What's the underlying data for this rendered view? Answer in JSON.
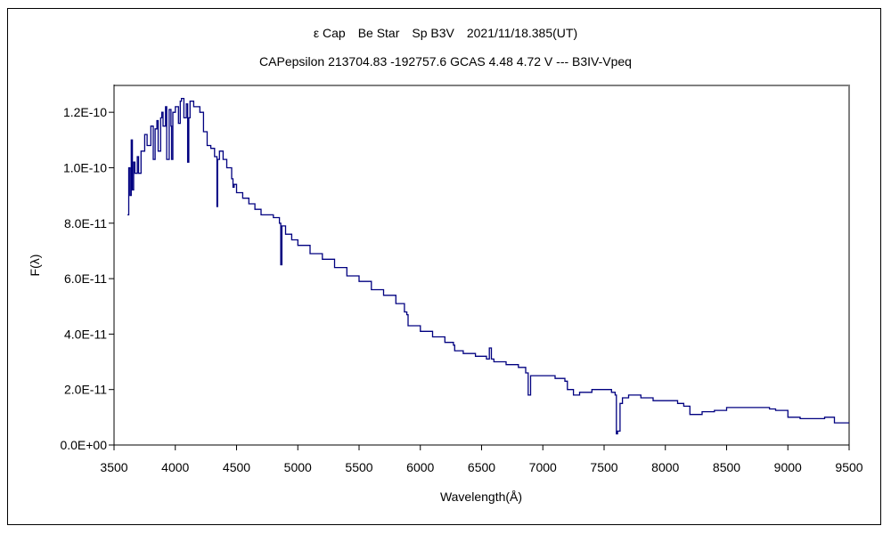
{
  "chart_data": {
    "type": "line",
    "title": "ε Cap　Be Star　Sp B3V　2021/11/18.385(UT)",
    "subtitle": "CAPepsilon 213704.83 -192757.6 GCAS 4.48 4.72 V --- B3IV-Vpeq",
    "xlabel": "Wavelength(Å)",
    "ylabel": "F(λ)",
    "xlim": [
      3500,
      9500
    ],
    "ylim": [
      0,
      1.3e-10
    ],
    "x_ticks": [
      3500,
      4000,
      4500,
      5000,
      5500,
      6000,
      6500,
      7000,
      7500,
      8000,
      8500,
      9000,
      9500
    ],
    "x_tick_labels": [
      "3500",
      "4000",
      "4500",
      "5000",
      "5500",
      "6000",
      "6500",
      "7000",
      "7500",
      "8000",
      "8500",
      "9000",
      "9500"
    ],
    "y_ticks": [
      0,
      2e-11,
      4e-11,
      6e-11,
      8e-11,
      1e-10,
      1.2e-10
    ],
    "y_tick_labels": [
      "0.0E+00",
      "2.0E-11",
      "4.0E-11",
      "6.0E-11",
      "8.0E-11",
      "1.0E-10",
      "1.2E-10"
    ],
    "grid": false,
    "line_color": "#000080",
    "series": [
      {
        "name": "F(λ)",
        "x": [
          3610,
          3620,
          3630,
          3640,
          3650,
          3660,
          3670,
          3690,
          3700,
          3720,
          3750,
          3770,
          3800,
          3820,
          3835,
          3850,
          3860,
          3880,
          3890,
          3900,
          3920,
          3930,
          3950,
          3965,
          3970,
          3980,
          4000,
          4026,
          4040,
          4050,
          4070,
          4090,
          4101,
          4110,
          4120,
          4150,
          4200,
          4230,
          4260,
          4290,
          4320,
          4340,
          4345,
          4360,
          4390,
          4420,
          4460,
          4471,
          4480,
          4500,
          4550,
          4600,
          4650,
          4700,
          4750,
          4800,
          4850,
          4861,
          4870,
          4880,
          4900,
          4950,
          5000,
          5100,
          5200,
          5300,
          5400,
          5500,
          5600,
          5700,
          5800,
          5870,
          5890,
          5900,
          5950,
          6000,
          6100,
          6200,
          6270,
          6280,
          6350,
          6450,
          6540,
          6563,
          6580,
          6600,
          6700,
          6800,
          6860,
          6870,
          6880,
          6900,
          7000,
          7100,
          7180,
          7200,
          7250,
          7300,
          7400,
          7500,
          7560,
          7590,
          7600,
          7610,
          7630,
          7650,
          7700,
          7800,
          7900,
          8000,
          8100,
          8150,
          8200,
          8300,
          8400,
          8500,
          8600,
          8700,
          8800,
          8850,
          8900,
          9000,
          9100,
          9200,
          9300,
          9350,
          9380,
          9400,
          9450,
          9500
        ],
        "y": [
          8.3,
          10.0,
          9.0,
          11.0,
          9.2,
          10.2,
          9.8,
          10.4,
          9.8,
          10.6,
          11.2,
          10.8,
          11.5,
          10.3,
          11.4,
          11.7,
          10.6,
          11.8,
          12.0,
          11.5,
          12.2,
          10.3,
          12.1,
          11.5,
          10.3,
          12.0,
          12.2,
          11.6,
          12.4,
          12.5,
          11.8,
          12.3,
          10.2,
          11.8,
          12.4,
          12.2,
          12.0,
          11.3,
          10.8,
          10.7,
          10.4,
          8.6,
          10.3,
          10.6,
          10.3,
          10.0,
          9.6,
          9.3,
          9.4,
          9.1,
          8.9,
          8.7,
          8.5,
          8.3,
          8.3,
          8.2,
          8.0,
          6.5,
          7.9,
          7.9,
          7.6,
          7.4,
          7.2,
          6.9,
          6.7,
          6.4,
          6.1,
          5.9,
          5.6,
          5.4,
          5.1,
          4.8,
          4.7,
          4.3,
          4.3,
          4.1,
          3.9,
          3.7,
          3.6,
          3.4,
          3.3,
          3.2,
          3.1,
          3.5,
          3.1,
          3.0,
          2.9,
          2.8,
          2.6,
          2.6,
          1.8,
          2.5,
          2.5,
          2.4,
          2.3,
          2.0,
          1.8,
          1.9,
          2.0,
          2.0,
          1.9,
          1.8,
          0.4,
          0.5,
          1.5,
          1.7,
          1.8,
          1.7,
          1.6,
          1.6,
          1.5,
          1.4,
          1.1,
          1.2,
          1.25,
          1.35,
          1.35,
          1.35,
          1.35,
          1.3,
          1.25,
          1.0,
          0.95,
          0.95,
          1.0,
          1.0,
          0.8,
          0.8,
          0.8,
          0.8
        ]
      }
    ]
  }
}
